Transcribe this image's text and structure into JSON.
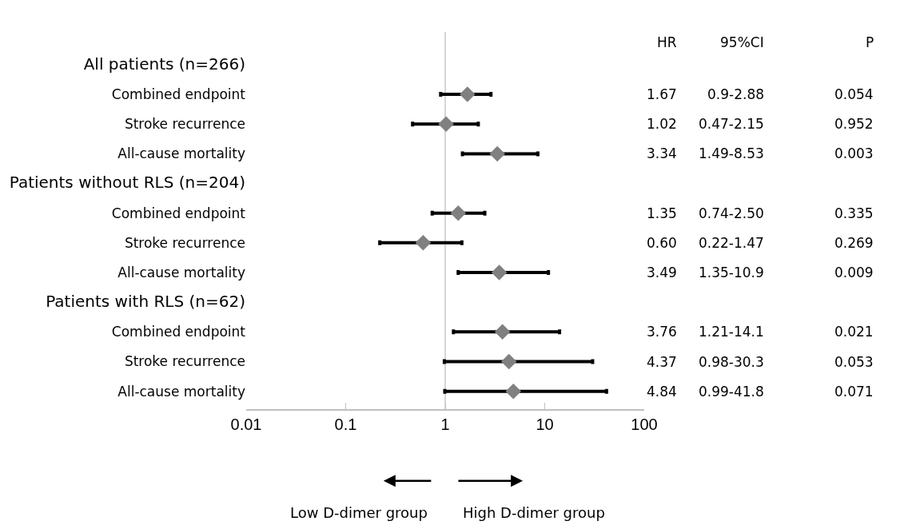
{
  "chart_data": {
    "type": "scatter",
    "orientation": "horizontal",
    "categories": [
      "All patients (n=266)",
      "Combined endpoint",
      "Stroke recurrence",
      "All-cause mortality",
      "Patients without RLS (n=204)",
      "Combined endpoint",
      "Stroke recurrence",
      "All-cause mortality",
      "Patients with RLS (n=62)",
      "Combined endpoint",
      "Stroke recurrence",
      "All-cause mortality"
    ],
    "series": [
      {
        "color": "#808080",
        "values": [
          null,
          1.67,
          1.02,
          3.34,
          null,
          1.35,
          0.6,
          3.49,
          null,
          3.76,
          4.37,
          4.84
        ],
        "errors": [
          null,
          [
            0.9,
            2.88
          ],
          [
            0.47,
            2.15
          ],
          [
            1.49,
            8.53
          ],
          null,
          [
            0.74,
            2.5
          ],
          [
            0.22,
            1.47
          ],
          [
            1.35,
            10.9
          ],
          null,
          [
            1.21,
            14.1
          ],
          [
            0.98,
            30.3
          ],
          [
            0.99,
            41.8
          ]
        ],
        "value_labels": [
          null,
          "1.67",
          "1.02",
          "3.34",
          null,
          "1.35",
          "0.60",
          "3.49",
          null,
          "3.76",
          "4.37",
          "4.84"
        ]
      }
    ],
    "marker": "diamond",
    "log": "x",
    "xlim": [
      0.01,
      100
    ],
    "xticks": [
      0.01,
      0.1,
      1,
      10,
      100
    ],
    "legend": false,
    "tick_labels": "x",
    "ref_lines": [
      {
        "axis": "x",
        "value": 1,
        "color": "#c8c8c8"
      }
    ],
    "annotations": [
      "HR",
      "95%CI",
      "P",
      "0.9-2.88",
      "0.054",
      "0.47-2.15",
      "0.952",
      "1.49-8.53",
      "0.003",
      "0.74-2.50",
      "0.335",
      "0.22-1.47",
      "0.269",
      "1.35-10.9",
      "0.009",
      "1.21-14.1",
      "0.021",
      "0.98-30.3",
      "0.053",
      "0.99-41.8",
      "0.071",
      "Low D-dimer group",
      "High D-dimer group"
    ]
  }
}
